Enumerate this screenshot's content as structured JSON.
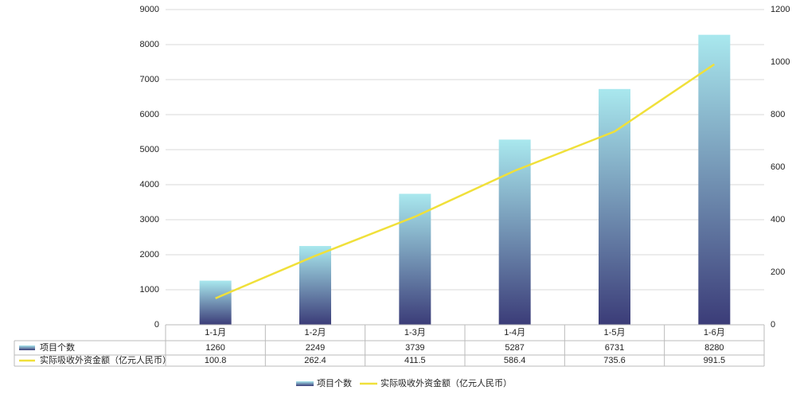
{
  "chart_data": {
    "type": "bar-line",
    "categories": [
      "1-1月",
      "1-2月",
      "1-3月",
      "1-4月",
      "1-5月",
      "1-6月"
    ],
    "series": [
      {
        "name": "项目个数",
        "type": "bar",
        "color": "#3b3c78",
        "values": [
          1260,
          2249,
          3739,
          5287,
          6731,
          8280
        ]
      },
      {
        "name": "实际吸收外资金额（亿元人民币）",
        "type": "line",
        "axis": "y2",
        "color": "#f0e03a",
        "values": [
          100.8,
          262.4,
          411.5,
          586.4,
          735.6,
          991.5
        ]
      }
    ],
    "ylim": [
      0,
      9000
    ],
    "yticks": [
      0,
      1000,
      2000,
      3000,
      4000,
      5000,
      6000,
      7000,
      8000,
      9000
    ],
    "y2lim": [
      0,
      1200
    ],
    "y2ticks": [
      0,
      200,
      400,
      600,
      800,
      1000,
      1200
    ],
    "grid": true,
    "legend": "bottom"
  }
}
